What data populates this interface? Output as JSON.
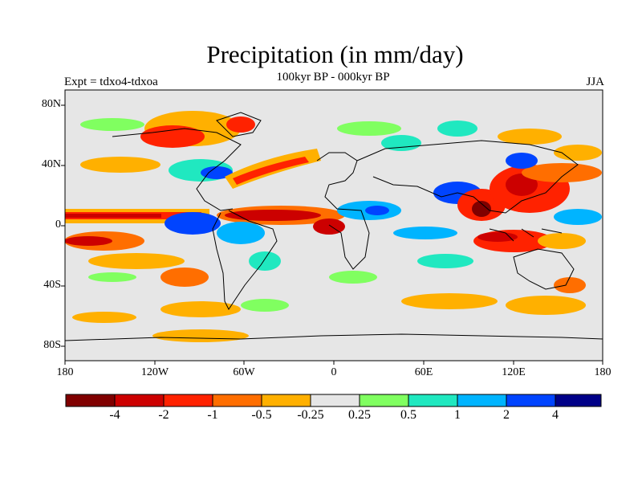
{
  "title": "Precipitation (in mm/day)",
  "subtitle": "100kyr BP - 000kyr BP",
  "left_label": "Expt = tdxo4-tdxoa",
  "right_label": "JJA",
  "lat_ticks": [
    {
      "label": "80N",
      "value": 80
    },
    {
      "label": "40N",
      "value": 40
    },
    {
      "label": "0",
      "value": 0
    },
    {
      "label": "40S",
      "value": -40
    },
    {
      "label": "80S",
      "value": -80
    }
  ],
  "lon_ticks": [
    {
      "label": "180",
      "value": -180
    },
    {
      "label": "120W",
      "value": -120
    },
    {
      "label": "60W",
      "value": -60
    },
    {
      "label": "0",
      "value": 0
    },
    {
      "label": "60E",
      "value": 60
    },
    {
      "label": "120E",
      "value": 120
    },
    {
      "label": "180",
      "value": 180
    }
  ],
  "colorbar": {
    "colors": [
      "#800000",
      "#cc0000",
      "#ff2200",
      "#ff6e00",
      "#ffb000",
      "#e6e6e6",
      "#80ff60",
      "#20e8c0",
      "#00b4ff",
      "#0044ff",
      "#000088"
    ],
    "labels": [
      "-4",
      "-2",
      "-1",
      "-0.5",
      "-0.25",
      "0.25",
      "0.5",
      "1",
      "2",
      "4"
    ]
  }
}
